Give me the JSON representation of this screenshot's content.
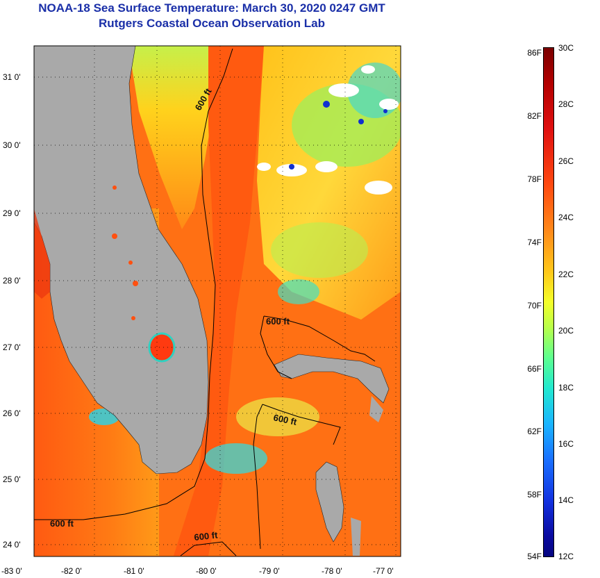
{
  "header": {
    "title": "NOAA-18 Sea Surface Temperature:  March 30, 2020 0247 GMT",
    "subtitle": "Rutgers Coastal Ocean Observation Lab"
  },
  "map": {
    "lat_ticks": [
      "31 0'",
      "30 0'",
      "29 0'",
      "28 0'",
      "27 0'",
      "26 0'",
      "25 0'",
      "24 0'"
    ],
    "lon_ticks": [
      "-83 0'",
      "-82 0'",
      "-81 0'",
      "-80 0'",
      "-79 0'",
      "-78 0'",
      "-77 0'"
    ],
    "contour_labels": [
      "600 ft",
      "600 ft",
      "600 ft",
      "600 ft",
      "600 ft"
    ]
  },
  "colorbar": {
    "fahrenheit": [
      "86F",
      "82F",
      "78F",
      "74F",
      "70F",
      "66F",
      "62F",
      "58F",
      "54F"
    ],
    "celsius": [
      "30C",
      "28C",
      "26C",
      "24C",
      "22C",
      "20C",
      "18C",
      "16C",
      "14C",
      "12C"
    ]
  },
  "colors": {
    "land": "#a9a9a9",
    "warm_water": "#ff6a10",
    "title": "#1a2fa8"
  }
}
